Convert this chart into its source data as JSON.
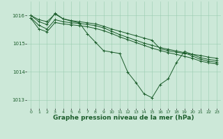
{
  "background_color": "#cce8d8",
  "plot_bg_color": "#cce8d8",
  "grid_color": "#99ccb0",
  "line_color": "#1a5c2a",
  "marker_color": "#1a5c2a",
  "xlabel": "Graphe pression niveau de la mer (hPa)",
  "xlabel_fontsize": 6.5,
  "xlim": [
    -0.5,
    23.5
  ],
  "ylim": [
    1012.7,
    1016.5
  ],
  "yticks": [
    1013,
    1014,
    1015,
    1016
  ],
  "xticks": [
    0,
    1,
    2,
    3,
    4,
    5,
    6,
    7,
    8,
    9,
    10,
    11,
    12,
    13,
    14,
    15,
    16,
    17,
    18,
    19,
    20,
    21,
    22,
    23
  ],
  "series": [
    [
      1016.0,
      1015.85,
      1015.78,
      1016.05,
      1015.88,
      1015.82,
      1015.78,
      1015.74,
      1015.7,
      1015.62,
      1015.52,
      1015.44,
      1015.36,
      1015.28,
      1015.2,
      1015.12,
      1014.82,
      1014.75,
      1014.7,
      1014.65,
      1014.62,
      1014.58,
      1014.52,
      1014.48
    ],
    [
      1016.0,
      1015.78,
      1015.68,
      1016.08,
      1015.88,
      1015.8,
      1015.74,
      1015.35,
      1015.05,
      1014.75,
      1014.7,
      1014.65,
      1013.98,
      1013.62,
      1013.22,
      1013.08,
      1013.55,
      1013.75,
      1014.32,
      1014.72,
      1014.62,
      1014.5,
      1014.44,
      1014.4
    ],
    [
      1015.92,
      1015.65,
      1015.52,
      1015.85,
      1015.78,
      1015.74,
      1015.72,
      1015.68,
      1015.64,
      1015.56,
      1015.44,
      1015.32,
      1015.22,
      1015.12,
      1015.02,
      1014.94,
      1014.86,
      1014.8,
      1014.74,
      1014.68,
      1014.56,
      1014.44,
      1014.38,
      1014.34
    ],
    [
      1015.9,
      1015.52,
      1015.42,
      1015.75,
      1015.7,
      1015.67,
      1015.64,
      1015.6,
      1015.54,
      1015.46,
      1015.36,
      1015.24,
      1015.14,
      1015.04,
      1014.94,
      1014.84,
      1014.76,
      1014.68,
      1014.62,
      1014.55,
      1014.48,
      1014.38,
      1014.32,
      1014.28
    ]
  ]
}
